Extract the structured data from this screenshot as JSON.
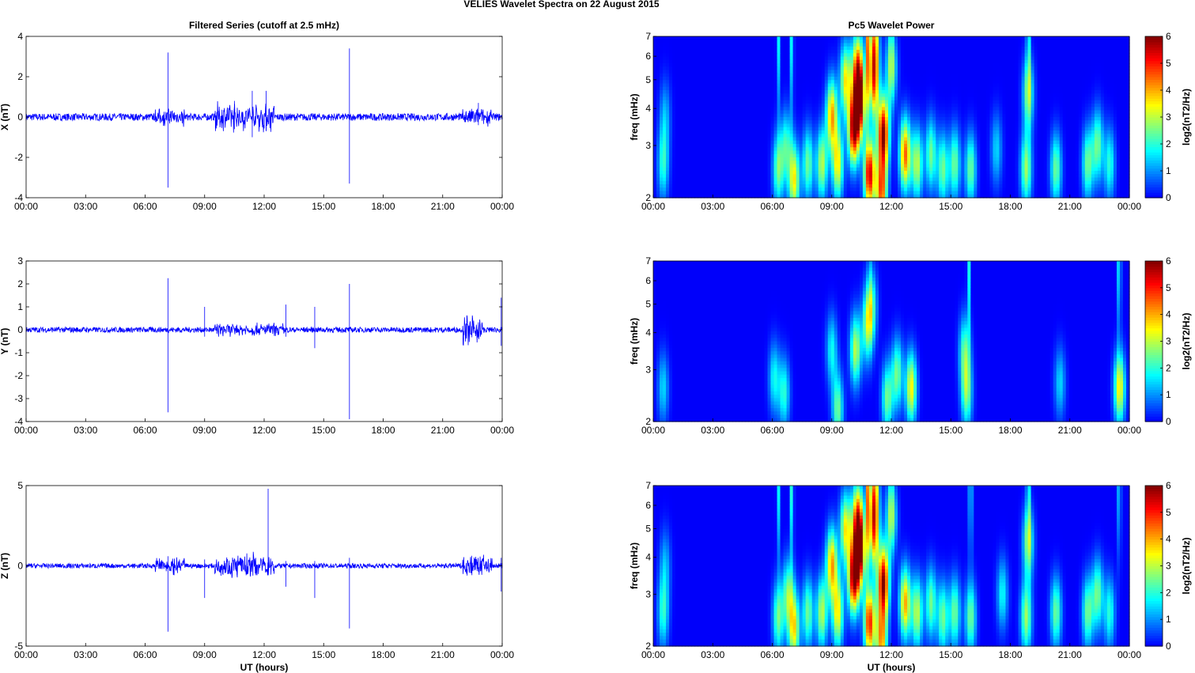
{
  "figure": {
    "suptitle": "VELIES Wavelet Spectra on 22 August    2015",
    "left_title": "Filtered Series (cutoff at 2.5 mHz)",
    "right_title": "Pc5 Wavelet Power",
    "xlabel": "UT (hours)",
    "freq_label": "freq (mHz)",
    "colorbar_label": "log2(nT2/Hz)",
    "colorbar_ticks": [
      "0",
      "1",
      "2",
      "3",
      "4",
      "5",
      "6"
    ],
    "time_ticks": [
      "00:00",
      "03:00",
      "06:00",
      "09:00",
      "12:00",
      "15:00",
      "18:00",
      "21:00",
      "00:00"
    ],
    "freq_ticks": [
      "2",
      "3",
      "4",
      "5",
      "6",
      "7"
    ],
    "colors": {
      "series_line": "#0000ff",
      "axis": "#000000"
    }
  },
  "chart_data": [
    {
      "type": "line",
      "panel": "X",
      "ylabel": "X (nT)",
      "ylim": [
        -4,
        4
      ],
      "yticks": [
        "-4",
        "-2",
        "0",
        "2",
        "4"
      ],
      "x_units": "hours UT",
      "xlim": [
        0,
        24
      ],
      "baseline_noise_nT": 0.18,
      "disturbed_intervals": [
        [
          6.5,
          8.0,
          0.35
        ],
        [
          9.5,
          12.5,
          0.55
        ],
        [
          22.0,
          23.5,
          0.35
        ]
      ],
      "spikes": [
        {
          "t": 7.15,
          "high": 3.2,
          "low": -3.5
        },
        {
          "t": 16.3,
          "high": 3.4,
          "low": -3.3
        },
        {
          "t": 12.1,
          "high": 1.3,
          "low": -0.7
        },
        {
          "t": 11.4,
          "high": 1.3,
          "low": -1.0
        },
        {
          "t": 10.5,
          "high": 0.8,
          "low": -0.6
        },
        {
          "t": 22.8,
          "high": 0.7,
          "low": -0.4
        }
      ]
    },
    {
      "type": "line",
      "panel": "Y",
      "ylabel": "Y (nT)",
      "ylim": [
        -4,
        3
      ],
      "yticks": [
        "-4",
        "-3",
        "-2",
        "-1",
        "0",
        "1",
        "2",
        "3"
      ],
      "x_units": "hours UT",
      "xlim": [
        0,
        24
      ],
      "baseline_noise_nT": 0.12,
      "disturbed_intervals": [
        [
          9.5,
          13.0,
          0.22
        ],
        [
          22.0,
          23.0,
          0.5
        ]
      ],
      "spikes": [
        {
          "t": 7.15,
          "high": 2.25,
          "low": -3.6
        },
        {
          "t": 16.3,
          "high": 2.0,
          "low": -3.9
        },
        {
          "t": 9.0,
          "high": 1.0,
          "low": -0.3
        },
        {
          "t": 13.1,
          "high": 1.1,
          "low": -0.3
        },
        {
          "t": 14.55,
          "high": 1.0,
          "low": -0.8
        },
        {
          "t": 23.95,
          "high": 1.4,
          "low": -0.7
        }
      ]
    },
    {
      "type": "line",
      "panel": "Z",
      "ylabel": "Z (nT)",
      "ylim": [
        -5,
        5
      ],
      "yticks": [
        "-5",
        "0",
        "5"
      ],
      "x_units": "hours UT",
      "xlim": [
        0,
        24
      ],
      "baseline_noise_nT": 0.15,
      "disturbed_intervals": [
        [
          6.5,
          8.0,
          0.4
        ],
        [
          9.5,
          12.5,
          0.6
        ],
        [
          22.0,
          23.5,
          0.6
        ]
      ],
      "spikes": [
        {
          "t": 7.15,
          "high": 0.6,
          "low": -4.1
        },
        {
          "t": 16.3,
          "high": 0.5,
          "low": -3.9
        },
        {
          "t": 12.2,
          "high": 4.8,
          "low": -0.4
        },
        {
          "t": 9.0,
          "high": 0.4,
          "low": -2.0
        },
        {
          "t": 13.1,
          "high": 0.3,
          "low": -1.3
        },
        {
          "t": 14.55,
          "high": 0.3,
          "low": -2.0
        },
        {
          "t": 23.95,
          "high": 0.5,
          "low": -1.6
        }
      ]
    },
    {
      "type": "heatmap",
      "panel": "X power",
      "ylabel": "freq (mHz)",
      "xlim": [
        0,
        24
      ],
      "ylim": [
        2,
        7
      ],
      "y_scale": "log",
      "clim": [
        0,
        6
      ],
      "colormap": "jet",
      "blobs": [
        {
          "t": 0.5,
          "f": 2.6,
          "p": 2.0
        },
        {
          "t": 0.6,
          "f": 3.8,
          "p": 1.2
        },
        {
          "t": 6.3,
          "f": 2.5,
          "p": 2.5
        },
        {
          "t": 6.7,
          "f": 3.0,
          "p": 2.0
        },
        {
          "t": 7.1,
          "f": 2.3,
          "p": 3.5
        },
        {
          "t": 7.8,
          "f": 2.6,
          "p": 2.5
        },
        {
          "t": 8.5,
          "f": 2.6,
          "p": 3.0
        },
        {
          "t": 9.0,
          "f": 3.8,
          "p": 4.0
        },
        {
          "t": 9.3,
          "f": 2.6,
          "p": 3.5
        },
        {
          "t": 9.7,
          "f": 5.0,
          "p": 3.5
        },
        {
          "t": 10.1,
          "f": 3.4,
          "p": 5.5
        },
        {
          "t": 10.4,
          "f": 4.2,
          "p": 5.5
        },
        {
          "t": 10.3,
          "f": 5.5,
          "p": 4.0
        },
        {
          "t": 10.9,
          "f": 2.4,
          "p": 5.5
        },
        {
          "t": 11.1,
          "f": 4.8,
          "p": 3.5
        },
        {
          "t": 11.6,
          "f": 3.3,
          "p": 5.8
        },
        {
          "t": 11.5,
          "f": 2.1,
          "p": 4.5
        },
        {
          "t": 11.1,
          "f": 6.5,
          "p": 3.0
        },
        {
          "t": 12.0,
          "f": 5.5,
          "p": 2.5
        },
        {
          "t": 12.7,
          "f": 2.8,
          "p": 4.5
        },
        {
          "t": 13.3,
          "f": 2.6,
          "p": 3.0
        },
        {
          "t": 14.0,
          "f": 2.8,
          "p": 2.5
        },
        {
          "t": 14.6,
          "f": 2.5,
          "p": 2.5
        },
        {
          "t": 15.2,
          "f": 2.6,
          "p": 2.5
        },
        {
          "t": 16.0,
          "f": 2.5,
          "p": 2.5
        },
        {
          "t": 18.8,
          "f": 2.5,
          "p": 2.8
        },
        {
          "t": 18.9,
          "f": 4.5,
          "p": 2.5
        },
        {
          "t": 20.3,
          "f": 2.5,
          "p": 2.5
        },
        {
          "t": 21.9,
          "f": 2.6,
          "p": 2.5
        },
        {
          "t": 22.4,
          "f": 3.0,
          "p": 2.5
        },
        {
          "t": 23.0,
          "f": 2.6,
          "p": 2.0
        },
        {
          "t": 17.3,
          "f": 2.9,
          "p": 1.5
        }
      ],
      "streaks": [
        {
          "t": 6.3,
          "p": 1.8
        },
        {
          "t": 7.0,
          "p": 2.2
        },
        {
          "t": 10.8,
          "p": 3.0
        },
        {
          "t": 11.2,
          "p": 2.5
        },
        {
          "t": 12.0,
          "p": 1.5
        },
        {
          "t": 18.9,
          "p": 2.5
        }
      ]
    },
    {
      "type": "heatmap",
      "panel": "Y power",
      "ylabel": "freq (mHz)",
      "xlim": [
        0,
        24
      ],
      "ylim": [
        2,
        7
      ],
      "y_scale": "log",
      "clim": [
        0,
        6
      ],
      "colormap": "jet",
      "blobs": [
        {
          "t": 0.5,
          "f": 2.6,
          "p": 1.5
        },
        {
          "t": 6.1,
          "f": 2.8,
          "p": 1.8
        },
        {
          "t": 6.6,
          "f": 2.5,
          "p": 2.0
        },
        {
          "t": 9.0,
          "f": 3.5,
          "p": 1.8
        },
        {
          "t": 9.3,
          "f": 2.2,
          "p": 2.5
        },
        {
          "t": 10.2,
          "f": 3.5,
          "p": 3.0
        },
        {
          "t": 10.8,
          "f": 4.2,
          "p": 2.5
        },
        {
          "t": 11.0,
          "f": 5.0,
          "p": 2.0
        },
        {
          "t": 11.8,
          "f": 2.4,
          "p": 2.5
        },
        {
          "t": 12.3,
          "f": 2.9,
          "p": 2.5
        },
        {
          "t": 13.0,
          "f": 2.6,
          "p": 3.5
        },
        {
          "t": 15.8,
          "f": 2.5,
          "p": 2.5
        },
        {
          "t": 15.7,
          "f": 3.5,
          "p": 2.2
        },
        {
          "t": 20.5,
          "f": 2.7,
          "p": 1.5
        },
        {
          "t": 23.5,
          "f": 2.6,
          "p": 3.5
        }
      ],
      "streaks": [
        {
          "t": 15.9,
          "p": 2.0
        },
        {
          "t": 23.5,
          "p": 2.5
        },
        {
          "t": 10.9,
          "p": 1.0
        }
      ]
    },
    {
      "type": "heatmap",
      "panel": "Z power",
      "ylabel": "freq (mHz)",
      "xlim": [
        0,
        24
      ],
      "ylim": [
        2,
        7
      ],
      "y_scale": "log",
      "clim": [
        0,
        6
      ],
      "colormap": "jet",
      "blobs": [
        {
          "t": 0.5,
          "f": 2.6,
          "p": 2.0
        },
        {
          "t": 0.6,
          "f": 3.8,
          "p": 1.2
        },
        {
          "t": 6.3,
          "f": 2.5,
          "p": 2.5
        },
        {
          "t": 6.8,
          "f": 3.0,
          "p": 2.5
        },
        {
          "t": 7.1,
          "f": 2.3,
          "p": 3.5
        },
        {
          "t": 7.8,
          "f": 2.6,
          "p": 2.5
        },
        {
          "t": 8.5,
          "f": 2.6,
          "p": 3.0
        },
        {
          "t": 9.0,
          "f": 3.8,
          "p": 4.0
        },
        {
          "t": 9.3,
          "f": 2.6,
          "p": 3.5
        },
        {
          "t": 9.7,
          "f": 5.0,
          "p": 3.5
        },
        {
          "t": 10.1,
          "f": 3.4,
          "p": 5.5
        },
        {
          "t": 10.4,
          "f": 4.2,
          "p": 5.5
        },
        {
          "t": 10.3,
          "f": 5.5,
          "p": 4.0
        },
        {
          "t": 10.9,
          "f": 2.4,
          "p": 5.0
        },
        {
          "t": 11.1,
          "f": 4.8,
          "p": 3.5
        },
        {
          "t": 11.6,
          "f": 3.3,
          "p": 5.8
        },
        {
          "t": 11.5,
          "f": 2.1,
          "p": 4.0
        },
        {
          "t": 11.1,
          "f": 6.5,
          "p": 3.0
        },
        {
          "t": 12.0,
          "f": 5.5,
          "p": 2.5
        },
        {
          "t": 12.7,
          "f": 2.8,
          "p": 4.0
        },
        {
          "t": 13.3,
          "f": 2.6,
          "p": 3.0
        },
        {
          "t": 14.0,
          "f": 2.8,
          "p": 2.5
        },
        {
          "t": 14.6,
          "f": 2.5,
          "p": 2.5
        },
        {
          "t": 15.2,
          "f": 2.6,
          "p": 2.5
        },
        {
          "t": 16.0,
          "f": 2.5,
          "p": 2.5
        },
        {
          "t": 17.6,
          "f": 3.0,
          "p": 1.8
        },
        {
          "t": 18.8,
          "f": 2.5,
          "p": 2.8
        },
        {
          "t": 18.9,
          "f": 4.5,
          "p": 2.5
        },
        {
          "t": 20.3,
          "f": 2.6,
          "p": 2.5
        },
        {
          "t": 21.9,
          "f": 2.6,
          "p": 2.5
        },
        {
          "t": 22.4,
          "f": 3.0,
          "p": 2.5
        },
        {
          "t": 23.0,
          "f": 2.6,
          "p": 2.0
        }
      ],
      "streaks": [
        {
          "t": 6.3,
          "p": 1.8
        },
        {
          "t": 7.0,
          "p": 2.5
        },
        {
          "t": 10.8,
          "p": 3.0
        },
        {
          "t": 11.2,
          "p": 2.5
        },
        {
          "t": 12.0,
          "p": 1.5
        },
        {
          "t": 16.0,
          "p": 2.5
        },
        {
          "t": 18.9,
          "p": 2.5
        },
        {
          "t": 23.5,
          "p": 2.0
        }
      ]
    }
  ]
}
